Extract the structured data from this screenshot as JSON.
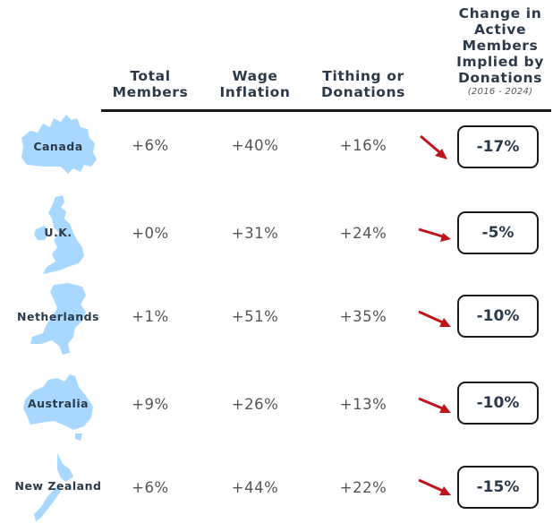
{
  "headers": {
    "total_members": [
      "Total",
      "Members"
    ],
    "wage_inflation": [
      "Wage",
      "Inflation"
    ],
    "tithing": [
      "Tithing or",
      "Donations"
    ],
    "change": [
      "Change in",
      "Active",
      "Members",
      "Implied by",
      "Donations"
    ],
    "change_period": "(2016 - 2024)"
  },
  "rows": [
    {
      "country": "Canada",
      "total_members": "+6%",
      "wage_inflation": "+40%",
      "tithing": "+16%",
      "change": "-17%",
      "map_icon": "canada-map-icon"
    },
    {
      "country": "U.K.",
      "total_members": "+0%",
      "wage_inflation": "+31%",
      "tithing": "+24%",
      "change": "-5%",
      "map_icon": "uk-map-icon"
    },
    {
      "country": "Netherlands",
      "total_members": "+1%",
      "wage_inflation": "+51%",
      "tithing": "+35%",
      "change": "-10%",
      "map_icon": "netherlands-map-icon"
    },
    {
      "country": "Australia",
      "total_members": "+9%",
      "wage_inflation": "+26%",
      "tithing": "+13%",
      "change": "-10%",
      "map_icon": "australia-map-icon"
    },
    {
      "country": "New Zealand",
      "total_members": "+6%",
      "wage_inflation": "+44%",
      "tithing": "+22%",
      "change": "-15%",
      "map_icon": "new-zealand-map-icon"
    }
  ],
  "colors": {
    "map_fill": "#a8d8ff",
    "arrow": "#c0141c",
    "header_text": "#2b3a4a",
    "value_text": "#555555"
  }
}
